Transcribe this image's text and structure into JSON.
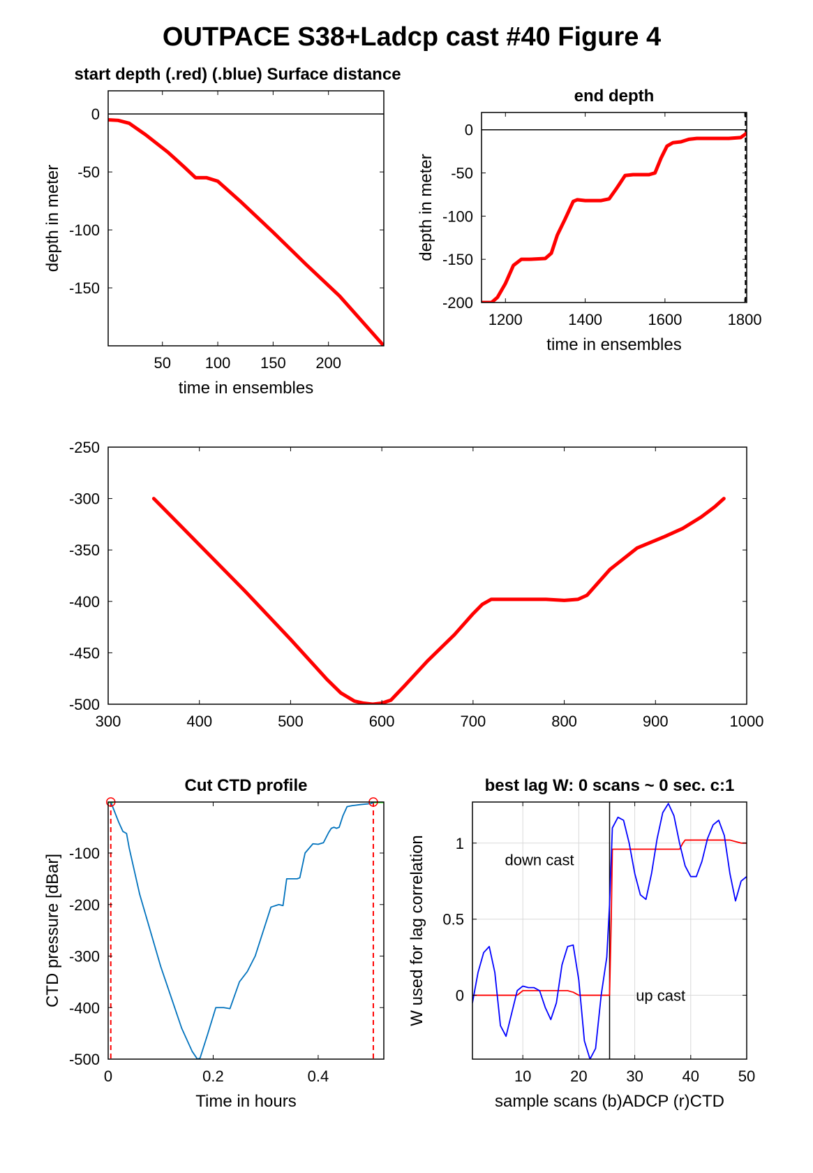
{
  "figure": {
    "title": "OUTPACE S38+Ladcp cast #40   Figure 4",
    "colors": {
      "red": "#ff0000",
      "blue": "#0000ff",
      "ctd": "#0072bd",
      "green": "#00ff00",
      "grid": "#d9d9d9",
      "axis": "#000000"
    }
  },
  "chart_data": [
    {
      "id": "start_depth",
      "type": "line",
      "title": "start depth (.red) (.blue) Surface distance",
      "xlabel": "time in ensembles",
      "ylabel": "depth in meter",
      "xlim": [
        1,
        250
      ],
      "ylim": [
        -200,
        20
      ],
      "xticks": [
        50,
        100,
        150,
        200
      ],
      "yticks": [
        0,
        -50,
        -100,
        -150
      ],
      "grid": false,
      "hlines": [
        0
      ],
      "series": [
        {
          "color": "#ff0000",
          "x": [
            1,
            10,
            20,
            35,
            55,
            70,
            80,
            90,
            100,
            120,
            150,
            180,
            210,
            250
          ],
          "y": [
            -5,
            -5.5,
            -8,
            -18,
            -33,
            -46,
            -55,
            -55,
            -58,
            -75,
            -102,
            -130,
            -157,
            -200
          ]
        }
      ]
    },
    {
      "id": "end_depth",
      "type": "line",
      "title": "end depth",
      "xlabel": "time in ensembles",
      "ylabel": "depth in meter",
      "xlim": [
        1140,
        1805
      ],
      "ylim": [
        -200,
        20
      ],
      "xticks": [
        1200,
        1400,
        1600,
        1800
      ],
      "yticks": [
        0,
        -50,
        -100,
        -150,
        -200
      ],
      "grid": false,
      "hlines": [
        0
      ],
      "vlines_dashed": [
        1802
      ],
      "series": [
        {
          "color": "#ff0000",
          "x": [
            1140,
            1165,
            1180,
            1200,
            1220,
            1240,
            1260,
            1300,
            1315,
            1330,
            1350,
            1370,
            1380,
            1400,
            1420,
            1440,
            1460,
            1480,
            1500,
            1520,
            1540,
            1560,
            1575,
            1590,
            1605,
            1620,
            1640,
            1660,
            1680,
            1720,
            1760,
            1790,
            1805
          ],
          "y": [
            -200,
            -200,
            -194,
            -178,
            -157,
            -150,
            -150,
            -149,
            -143,
            -122,
            -103,
            -83,
            -81,
            -82,
            -82,
            -82,
            -80,
            -67,
            -53,
            -52,
            -52,
            -52,
            -50,
            -33,
            -19,
            -15,
            -14,
            -11,
            -10,
            -10,
            -10,
            -9,
            -4
          ]
        }
      ]
    },
    {
      "id": "surface_distance",
      "type": "line",
      "title": "",
      "xlabel": "",
      "ylabel": "",
      "xlim": [
        300,
        1000
      ],
      "ylim": [
        -500,
        -250
      ],
      "xticks": [
        300,
        400,
        500,
        600,
        700,
        800,
        900,
        1000
      ],
      "yticks": [
        -250,
        -300,
        -350,
        -400,
        -450,
        -500
      ],
      "grid": false,
      "series": [
        {
          "color": "#ff0000",
          "x": [
            350,
            400,
            450,
            500,
            540,
            555,
            570,
            580,
            590,
            600,
            610,
            625,
            650,
            680,
            700,
            710,
            720,
            750,
            780,
            800,
            815,
            825,
            850,
            880,
            910,
            930,
            950,
            965,
            975
          ],
          "y": [
            -300,
            -345,
            -390,
            -437,
            -476,
            -489,
            -497,
            -499,
            -500,
            -499,
            -496,
            -482,
            -458,
            -432,
            -412,
            -403,
            -398,
            -398,
            -398,
            -399,
            -398,
            -394,
            -369,
            -348,
            -337,
            -329,
            -318,
            -308,
            -300
          ]
        }
      ]
    },
    {
      "id": "cut_ctd_profile",
      "type": "line",
      "title": "Cut CTD profile",
      "xlabel": "Time in hours",
      "ylabel": "CTD pressure [dBar]",
      "xlim": [
        0,
        0.525
      ],
      "ylim": [
        -500,
        -1
      ],
      "xticks": [
        0,
        0.2,
        0.4
      ],
      "xtick_labels": [
        "0",
        "0.2",
        "0.4"
      ],
      "yticks": [
        -100,
        -200,
        -300,
        -400,
        -500
      ],
      "grid": false,
      "vlines_dashed": [
        0.005,
        0.505
      ],
      "markers": {
        "color": "#ff0000",
        "x": [
          0.005,
          0.505
        ],
        "y": [
          -1,
          -1
        ]
      },
      "green_segments": [
        {
          "x": [
            0,
            0.01
          ],
          "y": [
            -1,
            -1
          ]
        },
        {
          "x": [
            0.5,
            0.525
          ],
          "y": [
            -1,
            -1
          ]
        }
      ],
      "series": [
        {
          "color": "#0072bd",
          "x": [
            0.005,
            0.02,
            0.028,
            0.035,
            0.04,
            0.06,
            0.1,
            0.14,
            0.16,
            0.17,
            0.175,
            0.19,
            0.205,
            0.22,
            0.232,
            0.25,
            0.265,
            0.28,
            0.31,
            0.325,
            0.333,
            0.34,
            0.36,
            0.365,
            0.375,
            0.39,
            0.4,
            0.41,
            0.42,
            0.425,
            0.43,
            0.435,
            0.44,
            0.447,
            0.455,
            0.465,
            0.48,
            0.5,
            0.505
          ],
          "y": [
            -1,
            -40,
            -58,
            -62,
            -90,
            -180,
            -320,
            -440,
            -485,
            -500,
            -498,
            -450,
            -400,
            -400,
            -402,
            -350,
            -330,
            -300,
            -205,
            -200,
            -202,
            -150,
            -150,
            -148,
            -100,
            -82,
            -83,
            -80,
            -60,
            -52,
            -50,
            -52,
            -50,
            -28,
            -10,
            -8,
            -6,
            -4,
            -2
          ]
        }
      ]
    },
    {
      "id": "best_lag",
      "type": "line",
      "title": "best lag W: 0 scans ~ 0 sec.  c:1",
      "xlabel": "sample scans (b)ADCP (r)CTD",
      "ylabel": "W used for lag correlation",
      "xlim": [
        1,
        50
      ],
      "ylim": [
        -0.42,
        1.27
      ],
      "xticks": [
        10,
        20,
        30,
        40,
        50
      ],
      "yticks": [
        0,
        0.5,
        1
      ],
      "ytick_labels": [
        "0",
        "0.5",
        "1"
      ],
      "grid": true,
      "vlines": [
        25.5
      ],
      "annotations": [
        {
          "text": "down cast",
          "x": 6.8,
          "y": 0.89
        },
        {
          "text": "up cast",
          "x": 30.2,
          "y": 0.0
        }
      ],
      "series": [
        {
          "color": "#ff0000",
          "x": [
            1,
            9,
            10,
            18,
            19,
            20,
            25.5,
            25.8,
            26,
            32,
            38,
            38.6,
            39,
            47,
            48,
            49,
            50
          ],
          "y": [
            0,
            0,
            0.03,
            0.03,
            0.02,
            0,
            0,
            0.5,
            0.96,
            0.96,
            0.96,
            1.0,
            1.02,
            1.02,
            1.01,
            1.0,
            1.0
          ]
        },
        {
          "color": "#0000ff",
          "x": [
            1,
            2,
            3,
            4,
            5,
            6,
            7,
            8,
            9,
            10,
            11,
            12,
            13,
            14,
            15,
            16,
            17,
            18,
            19,
            20,
            21,
            22,
            23,
            24,
            25,
            25.5,
            26,
            27,
            28,
            29,
            30,
            31,
            32,
            33,
            34,
            35,
            36,
            37,
            38,
            39,
            40,
            41,
            42,
            43,
            44,
            45,
            46,
            47,
            48,
            49,
            50
          ],
          "y": [
            -0.05,
            0.15,
            0.28,
            0.32,
            0.15,
            -0.2,
            -0.27,
            -0.12,
            0.03,
            0.06,
            0.05,
            0.05,
            0.03,
            -0.08,
            -0.16,
            -0.05,
            0.2,
            0.32,
            0.33,
            0.1,
            -0.3,
            -0.42,
            -0.35,
            0.0,
            0.25,
            0.6,
            1.1,
            1.17,
            1.15,
            1.0,
            0.8,
            0.66,
            0.63,
            0.8,
            1.03,
            1.2,
            1.26,
            1.18,
            1.0,
            0.85,
            0.78,
            0.78,
            0.88,
            1.03,
            1.12,
            1.15,
            1.05,
            0.8,
            0.62,
            0.75,
            0.78
          ]
        }
      ]
    }
  ]
}
